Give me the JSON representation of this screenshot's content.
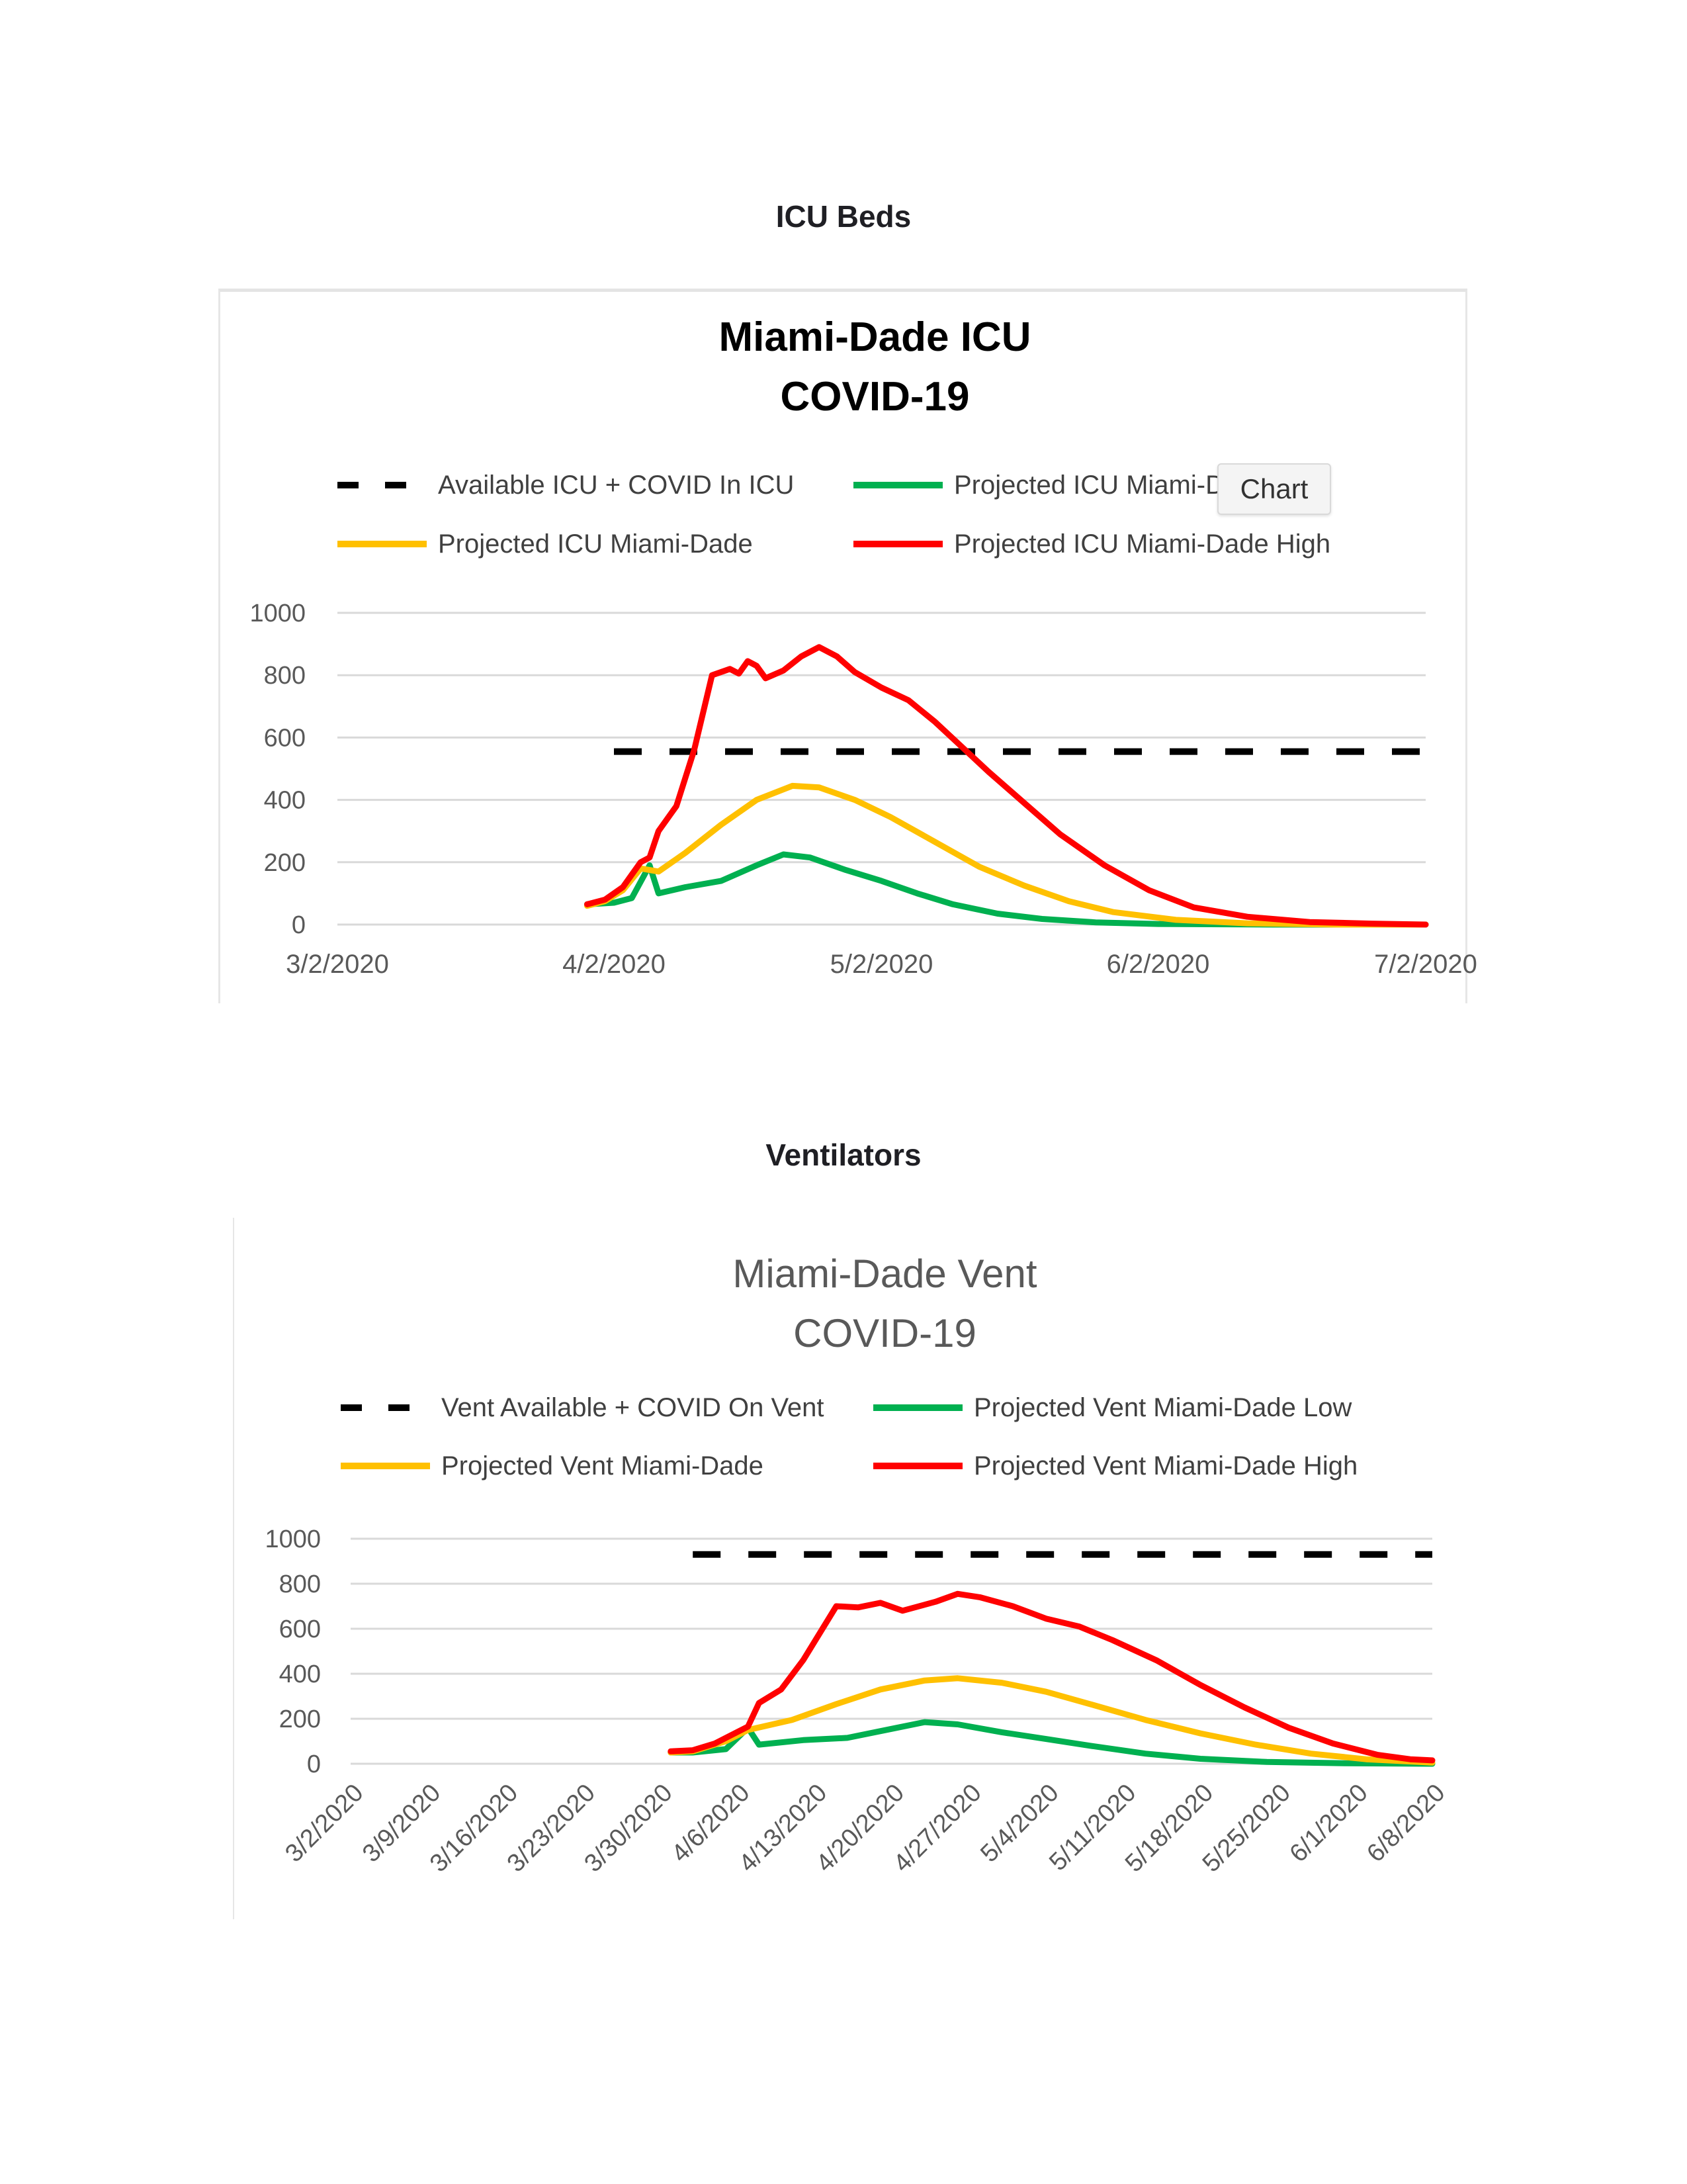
{
  "page": {
    "icu_heading": "ICU Beds",
    "vent_heading": "Ventilators",
    "tooltip": "Chart"
  },
  "chart_data": [
    {
      "type": "line",
      "title": "Miami-Dade ICU\nCOVID-19",
      "title_lines": [
        "Miami-Dade ICU",
        "COVID-19"
      ],
      "title_bold": true,
      "xlabel": "",
      "ylabel": "",
      "ylim": [
        0,
        1000
      ],
      "yticks": [
        "0",
        "200",
        "400",
        "600",
        "800",
        "1000"
      ],
      "xlim": [
        "3/2/2020",
        "7/2/2020"
      ],
      "xticks": [
        "3/2/2020",
        "4/2/2020",
        "5/2/2020",
        "6/2/2020",
        "7/2/2020"
      ],
      "grid": true,
      "legend_position": "top",
      "series": [
        {
          "name": "Available ICU + COVID In ICU",
          "color": "#000000",
          "dashed": true,
          "points": [
            [
              "4/2/2020",
              555
            ],
            [
              "7/2/2020",
              555
            ]
          ]
        },
        {
          "name": "Projected ICU Miami-Dade Low",
          "color": "#00b050",
          "dashed": false,
          "points": [
            [
              "3/30/2020",
              65
            ],
            [
              "4/2/2020",
              70
            ],
            [
              "4/4/2020",
              85
            ],
            [
              "4/6/2020",
              190
            ],
            [
              "4/7/2020",
              100
            ],
            [
              "4/10/2020",
              120
            ],
            [
              "4/14/2020",
              140
            ],
            [
              "4/18/2020",
              190
            ],
            [
              "4/21/2020",
              225
            ],
            [
              "4/24/2020",
              215
            ],
            [
              "4/28/2020",
              175
            ],
            [
              "5/2/2020",
              140
            ],
            [
              "5/6/2020",
              100
            ],
            [
              "5/10/2020",
              65
            ],
            [
              "5/15/2020",
              35
            ],
            [
              "5/20/2020",
              18
            ],
            [
              "5/26/2020",
              7
            ],
            [
              "6/2/2020",
              2
            ],
            [
              "6/15/2020",
              0
            ],
            [
              "7/2/2020",
              0
            ]
          ]
        },
        {
          "name": "Projected ICU Miami-Dade",
          "color": "#ffc000",
          "dashed": false,
          "points": [
            [
              "3/30/2020",
              60
            ],
            [
              "4/1/2020",
              75
            ],
            [
              "4/3/2020",
              110
            ],
            [
              "4/5/2020",
              180
            ],
            [
              "4/7/2020",
              170
            ],
            [
              "4/10/2020",
              230
            ],
            [
              "4/14/2020",
              320
            ],
            [
              "4/18/2020",
              400
            ],
            [
              "4/22/2020",
              445
            ],
            [
              "4/25/2020",
              440
            ],
            [
              "4/29/2020",
              400
            ],
            [
              "5/3/2020",
              345
            ],
            [
              "5/8/2020",
              265
            ],
            [
              "5/13/2020",
              185
            ],
            [
              "5/18/2020",
              125
            ],
            [
              "5/23/2020",
              75
            ],
            [
              "5/28/2020",
              40
            ],
            [
              "6/4/2020",
              15
            ],
            [
              "6/12/2020",
              4
            ],
            [
              "6/22/2020",
              0
            ],
            [
              "7/2/2020",
              0
            ]
          ]
        },
        {
          "name": "Projected ICU Miami-Dade High",
          "color": "#ff0000",
          "dashed": false,
          "points": [
            [
              "3/30/2020",
              65
            ],
            [
              "4/1/2020",
              80
            ],
            [
              "4/3/2020",
              120
            ],
            [
              "4/5/2020",
              200
            ],
            [
              "4/6/2020",
              215
            ],
            [
              "4/7/2020",
              300
            ],
            [
              "4/9/2020",
              380
            ],
            [
              "4/11/2020",
              560
            ],
            [
              "4/13/2020",
              800
            ],
            [
              "4/15/2020",
              820
            ],
            [
              "4/16/2020",
              805
            ],
            [
              "4/17/2020",
              845
            ],
            [
              "4/18/2020",
              830
            ],
            [
              "4/19/2020",
              790
            ],
            [
              "4/21/2020",
              815
            ],
            [
              "4/23/2020",
              860
            ],
            [
              "4/25/2020",
              890
            ],
            [
              "4/27/2020",
              860
            ],
            [
              "4/29/2020",
              810
            ],
            [
              "5/2/2020",
              760
            ],
            [
              "5/5/2020",
              720
            ],
            [
              "5/8/2020",
              650
            ],
            [
              "5/11/2020",
              570
            ],
            [
              "5/14/2020",
              490
            ],
            [
              "5/18/2020",
              390
            ],
            [
              "5/22/2020",
              290
            ],
            [
              "5/27/2020",
              190
            ],
            [
              "6/1/2020",
              110
            ],
            [
              "6/6/2020",
              55
            ],
            [
              "6/12/2020",
              25
            ],
            [
              "6/19/2020",
              8
            ],
            [
              "6/26/2020",
              3
            ],
            [
              "7/2/2020",
              0
            ]
          ]
        }
      ]
    },
    {
      "type": "line",
      "title": "Miami-Dade Vent\nCOVID-19",
      "title_lines": [
        "Miami-Dade Vent",
        "COVID-19"
      ],
      "title_bold": false,
      "xlabel": "",
      "ylabel": "",
      "ylim": [
        0,
        1000
      ],
      "yticks": [
        "0",
        "200",
        "400",
        "600",
        "800",
        "1000"
      ],
      "xlim": [
        "3/2/2020",
        "6/8/2020"
      ],
      "xticks": [
        "3/2/2020",
        "3/9/2020",
        "3/16/2020",
        "3/23/2020",
        "3/30/2020",
        "4/6/2020",
        "4/13/2020",
        "4/20/2020",
        "4/27/2020",
        "5/4/2020",
        "5/11/2020",
        "5/18/2020",
        "5/25/2020",
        "6/1/2020",
        "6/8/2020"
      ],
      "xtick_rotation": -45,
      "grid": true,
      "legend_position": "top",
      "series": [
        {
          "name": "Vent Available + COVID On Vent",
          "color": "#000000",
          "dashed": true,
          "points": [
            [
              "4/2/2020",
              930
            ],
            [
              "6/8/2020",
              930
            ]
          ]
        },
        {
          "name": "Projected Vent Miami-Dade Low",
          "color": "#00b050",
          "dashed": false,
          "points": [
            [
              "3/31/2020",
              50
            ],
            [
              "4/2/2020",
              50
            ],
            [
              "4/5/2020",
              65
            ],
            [
              "4/7/2020",
              160
            ],
            [
              "4/8/2020",
              85
            ],
            [
              "4/12/2020",
              105
            ],
            [
              "4/16/2020",
              115
            ],
            [
              "4/20/2020",
              155
            ],
            [
              "4/23/2020",
              185
            ],
            [
              "4/26/2020",
              175
            ],
            [
              "4/30/2020",
              140
            ],
            [
              "5/4/2020",
              110
            ],
            [
              "5/8/2020",
              80
            ],
            [
              "5/13/2020",
              45
            ],
            [
              "5/18/2020",
              22
            ],
            [
              "5/24/2020",
              8
            ],
            [
              "5/31/2020",
              2
            ],
            [
              "6/8/2020",
              0
            ]
          ]
        },
        {
          "name": "Projected Vent Miami-Dade",
          "color": "#ffc000",
          "dashed": false,
          "points": [
            [
              "3/31/2020",
              50
            ],
            [
              "4/2/2020",
              55
            ],
            [
              "4/5/2020",
              100
            ],
            [
              "4/7/2020",
              150
            ],
            [
              "4/11/2020",
              195
            ],
            [
              "4/15/2020",
              265
            ],
            [
              "4/19/2020",
              330
            ],
            [
              "4/23/2020",
              370
            ],
            [
              "4/26/2020",
              380
            ],
            [
              "4/30/2020",
              360
            ],
            [
              "5/4/2020",
              320
            ],
            [
              "5/8/2020",
              265
            ],
            [
              "5/13/2020",
              195
            ],
            [
              "5/18/2020",
              135
            ],
            [
              "5/23/2020",
              85
            ],
            [
              "5/28/2020",
              45
            ],
            [
              "6/2/2020",
              20
            ],
            [
              "6/8/2020",
              5
            ]
          ]
        },
        {
          "name": "Projected Vent Miami-Dade High",
          "color": "#ff0000",
          "dashed": false,
          "points": [
            [
              "3/31/2020",
              55
            ],
            [
              "4/2/2020",
              60
            ],
            [
              "4/4/2020",
              90
            ],
            [
              "4/6/2020",
              140
            ],
            [
              "4/7/2020",
              165
            ],
            [
              "4/8/2020",
              270
            ],
            [
              "4/10/2020",
              330
            ],
            [
              "4/12/2020",
              460
            ],
            [
              "4/15/2020",
              700
            ],
            [
              "4/17/2020",
              695
            ],
            [
              "4/19/2020",
              715
            ],
            [
              "4/21/2020",
              680
            ],
            [
              "4/24/2020",
              720
            ],
            [
              "4/26/2020",
              755
            ],
            [
              "4/28/2020",
              740
            ],
            [
              "5/1/2020",
              700
            ],
            [
              "5/4/2020",
              645
            ],
            [
              "5/7/2020",
              610
            ],
            [
              "5/10/2020",
              550
            ],
            [
              "5/14/2020",
              460
            ],
            [
              "5/18/2020",
              350
            ],
            [
              "5/22/2020",
              250
            ],
            [
              "5/26/2020",
              160
            ],
            [
              "5/30/2020",
              90
            ],
            [
              "6/3/2020",
              40
            ],
            [
              "6/6/2020",
              20
            ],
            [
              "6/8/2020",
              15
            ]
          ]
        }
      ]
    }
  ]
}
